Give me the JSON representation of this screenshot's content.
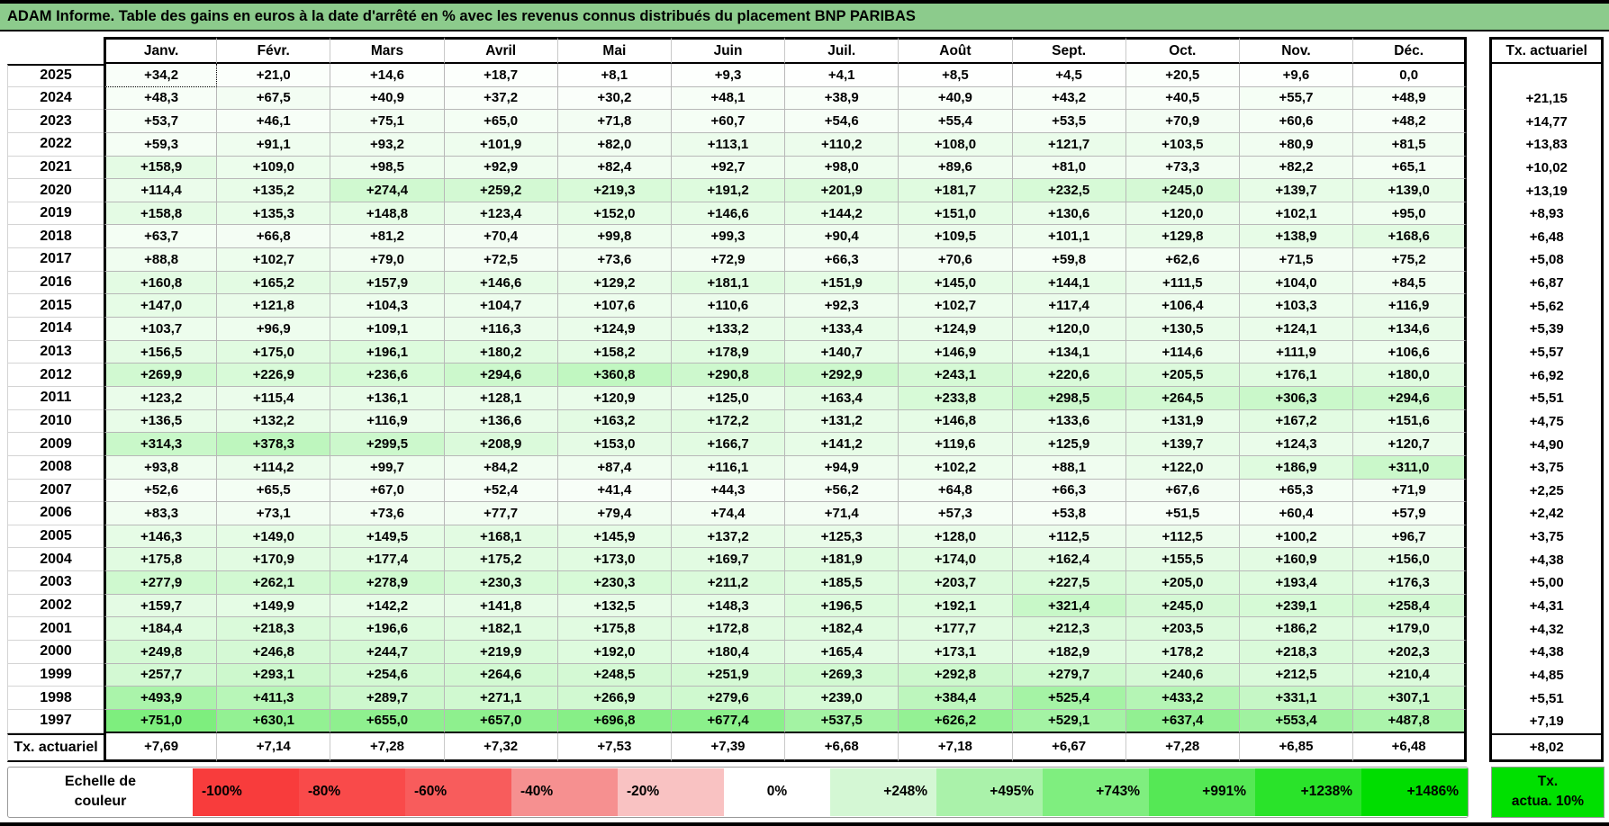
{
  "title": "ADAM Informe. Table des gains en euros à la date d'arrêté en % avec les revenus connus distribués du placement BNP PARIBAS",
  "colors": {
    "title_bar": "#8ccb8c",
    "grid_line": "#b8b8b8",
    "scale_zero": "#ffffff",
    "scale_max": "#00dd00"
  },
  "chart_data": {
    "type": "heatmap",
    "title": "ADAM Informe. Table des gains en euros à la date d'arrêté en % avec les revenus connus distribués du placement BNP PARIBAS",
    "columns": [
      "Janv.",
      "Févr.",
      "Mars",
      "Avril",
      "Mai",
      "Juin",
      "Juil.",
      "Août",
      "Sept.",
      "Oct.",
      "Nov.",
      "Déc."
    ],
    "right_column_header": "Tx. actuariel",
    "rows": [
      {
        "year": "2025",
        "values": [
          "+34,2",
          "+21,0",
          "+14,6",
          "+18,7",
          "+8,1",
          "+9,3",
          "+4,1",
          "+8,5",
          "+4,5",
          "+20,5",
          "+9,6",
          "0,0"
        ],
        "tx_actuariel": ""
      },
      {
        "year": "2024",
        "values": [
          "+48,3",
          "+67,5",
          "+40,9",
          "+37,2",
          "+30,2",
          "+48,1",
          "+38,9",
          "+40,9",
          "+43,2",
          "+40,5",
          "+55,7",
          "+48,9"
        ],
        "tx_actuariel": "+21,15"
      },
      {
        "year": "2023",
        "values": [
          "+53,7",
          "+46,1",
          "+75,1",
          "+65,0",
          "+71,8",
          "+60,7",
          "+54,6",
          "+55,4",
          "+53,5",
          "+70,9",
          "+60,6",
          "+48,2"
        ],
        "tx_actuariel": "+14,77"
      },
      {
        "year": "2022",
        "values": [
          "+59,3",
          "+91,1",
          "+93,2",
          "+101,9",
          "+82,0",
          "+113,1",
          "+110,2",
          "+108,0",
          "+121,7",
          "+103,5",
          "+80,9",
          "+81,5"
        ],
        "tx_actuariel": "+13,83"
      },
      {
        "year": "2021",
        "values": [
          "+158,9",
          "+109,0",
          "+98,5",
          "+92,9",
          "+82,4",
          "+92,7",
          "+98,0",
          "+89,6",
          "+81,0",
          "+73,3",
          "+82,2",
          "+65,1"
        ],
        "tx_actuariel": "+10,02"
      },
      {
        "year": "2020",
        "values": [
          "+114,4",
          "+135,2",
          "+274,4",
          "+259,2",
          "+219,3",
          "+191,2",
          "+201,9",
          "+181,7",
          "+232,5",
          "+245,0",
          "+139,7",
          "+139,0"
        ],
        "tx_actuariel": "+13,19"
      },
      {
        "year": "2019",
        "values": [
          "+158,8",
          "+135,3",
          "+148,8",
          "+123,4",
          "+152,0",
          "+146,6",
          "+144,2",
          "+151,0",
          "+130,6",
          "+120,0",
          "+102,1",
          "+95,0"
        ],
        "tx_actuariel": "+8,93"
      },
      {
        "year": "2018",
        "values": [
          "+63,7",
          "+66,8",
          "+81,2",
          "+70,4",
          "+99,8",
          "+99,3",
          "+90,4",
          "+109,5",
          "+101,1",
          "+129,8",
          "+138,9",
          "+168,6"
        ],
        "tx_actuariel": "+6,48"
      },
      {
        "year": "2017",
        "values": [
          "+88,8",
          "+102,7",
          "+79,0",
          "+72,5",
          "+73,6",
          "+72,9",
          "+66,3",
          "+70,6",
          "+59,8",
          "+62,6",
          "+71,5",
          "+75,2"
        ],
        "tx_actuariel": "+5,08"
      },
      {
        "year": "2016",
        "values": [
          "+160,8",
          "+165,2",
          "+157,9",
          "+146,6",
          "+129,2",
          "+181,1",
          "+151,9",
          "+145,0",
          "+144,1",
          "+111,5",
          "+104,0",
          "+84,5"
        ],
        "tx_actuariel": "+6,87"
      },
      {
        "year": "2015",
        "values": [
          "+147,0",
          "+121,8",
          "+104,3",
          "+104,7",
          "+107,6",
          "+110,6",
          "+92,3",
          "+102,7",
          "+117,4",
          "+106,4",
          "+103,3",
          "+116,9"
        ],
        "tx_actuariel": "+5,62"
      },
      {
        "year": "2014",
        "values": [
          "+103,7",
          "+96,9",
          "+109,1",
          "+116,3",
          "+124,9",
          "+133,2",
          "+133,4",
          "+124,9",
          "+120,0",
          "+130,5",
          "+124,1",
          "+134,6"
        ],
        "tx_actuariel": "+5,39"
      },
      {
        "year": "2013",
        "values": [
          "+156,5",
          "+175,0",
          "+196,1",
          "+180,2",
          "+158,2",
          "+178,9",
          "+140,7",
          "+146,9",
          "+134,1",
          "+114,6",
          "+111,9",
          "+106,6"
        ],
        "tx_actuariel": "+5,57"
      },
      {
        "year": "2012",
        "values": [
          "+269,9",
          "+226,9",
          "+236,6",
          "+294,6",
          "+360,8",
          "+290,8",
          "+292,9",
          "+243,1",
          "+220,6",
          "+205,5",
          "+176,1",
          "+180,0"
        ],
        "tx_actuariel": "+6,92"
      },
      {
        "year": "2011",
        "values": [
          "+123,2",
          "+115,4",
          "+136,1",
          "+128,1",
          "+120,9",
          "+125,0",
          "+163,4",
          "+233,8",
          "+298,5",
          "+264,5",
          "+306,3",
          "+294,6"
        ],
        "tx_actuariel": "+5,51"
      },
      {
        "year": "2010",
        "values": [
          "+136,5",
          "+132,2",
          "+116,9",
          "+136,6",
          "+163,2",
          "+172,2",
          "+131,2",
          "+146,8",
          "+133,6",
          "+131,9",
          "+167,2",
          "+151,6"
        ],
        "tx_actuariel": "+4,75"
      },
      {
        "year": "2009",
        "values": [
          "+314,3",
          "+378,3",
          "+299,5",
          "+208,9",
          "+153,0",
          "+166,7",
          "+141,2",
          "+119,6",
          "+125,9",
          "+139,7",
          "+124,3",
          "+120,7"
        ],
        "tx_actuariel": "+4,90"
      },
      {
        "year": "2008",
        "values": [
          "+93,8",
          "+114,2",
          "+99,7",
          "+84,2",
          "+87,4",
          "+116,1",
          "+94,9",
          "+102,2",
          "+88,1",
          "+122,0",
          "+186,9",
          "+311,0"
        ],
        "tx_actuariel": "+3,75"
      },
      {
        "year": "2007",
        "values": [
          "+52,6",
          "+65,5",
          "+67,0",
          "+52,4",
          "+41,4",
          "+44,3",
          "+56,2",
          "+64,8",
          "+66,3",
          "+67,6",
          "+65,3",
          "+71,9"
        ],
        "tx_actuariel": "+2,25"
      },
      {
        "year": "2006",
        "values": [
          "+83,3",
          "+73,1",
          "+73,6",
          "+77,7",
          "+79,4",
          "+74,4",
          "+71,4",
          "+57,3",
          "+53,8",
          "+51,5",
          "+60,4",
          "+57,9"
        ],
        "tx_actuariel": "+2,42"
      },
      {
        "year": "2005",
        "values": [
          "+146,3",
          "+149,0",
          "+149,5",
          "+168,1",
          "+145,9",
          "+137,2",
          "+125,3",
          "+128,0",
          "+112,5",
          "+112,5",
          "+100,2",
          "+96,7"
        ],
        "tx_actuariel": "+3,75"
      },
      {
        "year": "2004",
        "values": [
          "+175,8",
          "+170,9",
          "+177,4",
          "+175,2",
          "+173,0",
          "+169,7",
          "+181,9",
          "+174,0",
          "+162,4",
          "+155,5",
          "+160,9",
          "+156,0"
        ],
        "tx_actuariel": "+4,38"
      },
      {
        "year": "2003",
        "values": [
          "+277,9",
          "+262,1",
          "+278,9",
          "+230,3",
          "+230,3",
          "+211,2",
          "+185,5",
          "+203,7",
          "+227,5",
          "+205,0",
          "+193,4",
          "+176,3"
        ],
        "tx_actuariel": "+5,00"
      },
      {
        "year": "2002",
        "values": [
          "+159,7",
          "+149,9",
          "+142,2",
          "+141,8",
          "+132,5",
          "+148,3",
          "+196,5",
          "+192,1",
          "+321,4",
          "+245,0",
          "+239,1",
          "+258,4"
        ],
        "tx_actuariel": "+4,31"
      },
      {
        "year": "2001",
        "values": [
          "+184,4",
          "+218,3",
          "+196,6",
          "+182,1",
          "+175,8",
          "+172,8",
          "+182,4",
          "+177,7",
          "+212,3",
          "+203,5",
          "+186,2",
          "+179,0"
        ],
        "tx_actuariel": "+4,32"
      },
      {
        "year": "2000",
        "values": [
          "+249,8",
          "+246,8",
          "+244,7",
          "+219,9",
          "+192,0",
          "+180,4",
          "+165,4",
          "+173,1",
          "+182,9",
          "+178,2",
          "+218,3",
          "+202,3"
        ],
        "tx_actuariel": "+4,38"
      },
      {
        "year": "1999",
        "values": [
          "+257,7",
          "+293,1",
          "+254,6",
          "+264,6",
          "+248,5",
          "+251,9",
          "+269,3",
          "+292,8",
          "+279,7",
          "+240,6",
          "+212,5",
          "+210,4"
        ],
        "tx_actuariel": "+4,85"
      },
      {
        "year": "1998",
        "values": [
          "+493,9",
          "+411,3",
          "+289,7",
          "+271,1",
          "+266,9",
          "+279,6",
          "+239,0",
          "+384,4",
          "+525,4",
          "+433,2",
          "+331,1",
          "+307,1"
        ],
        "tx_actuariel": "+5,51"
      },
      {
        "year": "1997",
        "values": [
          "+751,0",
          "+630,1",
          "+655,0",
          "+657,0",
          "+696,8",
          "+677,4",
          "+537,5",
          "+626,2",
          "+529,1",
          "+637,4",
          "+553,4",
          "+487,8"
        ],
        "tx_actuariel": "+7,19"
      }
    ],
    "footer": {
      "label": "Tx. actuariel",
      "values": [
        "+7,69",
        "+7,14",
        "+7,28",
        "+7,32",
        "+7,53",
        "+7,39",
        "+6,68",
        "+7,18",
        "+6,67",
        "+7,28",
        "+6,85",
        "+6,48"
      ],
      "tx_actuariel": "+8,02"
    },
    "color_scale_domain": [
      0,
      1486
    ],
    "legend_position": "bottom"
  },
  "selection": {
    "row_year": "2025",
    "col_index": 0
  },
  "legend": {
    "label_line1": "Echelle de",
    "label_line2": "couleur",
    "cells": [
      {
        "label": "-100%",
        "color": "#f83c3c",
        "align": "left"
      },
      {
        "label": "-80%",
        "color": "#f94a4a",
        "align": "left"
      },
      {
        "label": "-60%",
        "color": "#f85c5c",
        "align": "left"
      },
      {
        "label": "-40%",
        "color": "#f69090",
        "align": "left"
      },
      {
        "label": "-20%",
        "color": "#f9c2c2",
        "align": "left"
      },
      {
        "label": "0%",
        "color": "#ffffff",
        "align": "center"
      },
      {
        "label": "+248%",
        "color": "#d4f7d4",
        "align": "right"
      },
      {
        "label": "+495%",
        "color": "#aaf2aa",
        "align": "right"
      },
      {
        "label": "+743%",
        "color": "#7fee7f",
        "align": "right"
      },
      {
        "label": "+991%",
        "color": "#55e855",
        "align": "right"
      },
      {
        "label": "+1238%",
        "color": "#2ae32a",
        "align": "right"
      },
      {
        "label": "+1486%",
        "color": "#00dd00",
        "align": "right"
      }
    ],
    "tx_box": {
      "line1": "Tx.",
      "line2": "actua. 10%",
      "color": "#00e000"
    }
  }
}
